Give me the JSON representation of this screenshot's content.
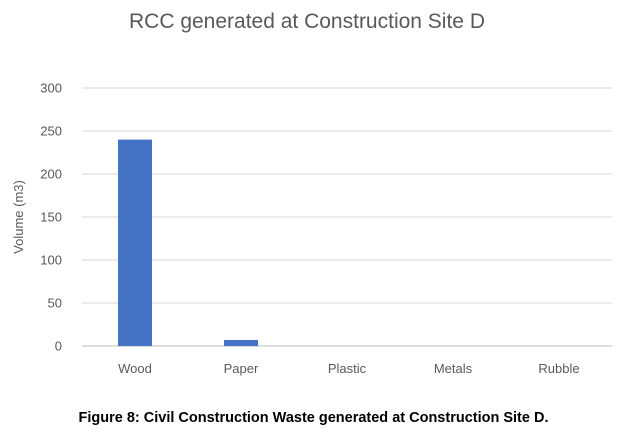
{
  "chart_data": {
    "type": "bar",
    "title": "RCC generated at Construction Site D",
    "xlabel": "",
    "ylabel": "Volume (m3)",
    "categories": [
      "Wood",
      "Paper",
      "Plastic",
      "Metals",
      "Rubble"
    ],
    "values": [
      240,
      7,
      0,
      0,
      0
    ],
    "ylim": [
      0,
      300
    ],
    "yticks": [
      0,
      50,
      100,
      150,
      200,
      250,
      300
    ],
    "grid": true,
    "legend": "none",
    "bar_color": "#4472c4"
  },
  "caption": "Figure 8: Civil Construction Waste generated at Construction Site D."
}
